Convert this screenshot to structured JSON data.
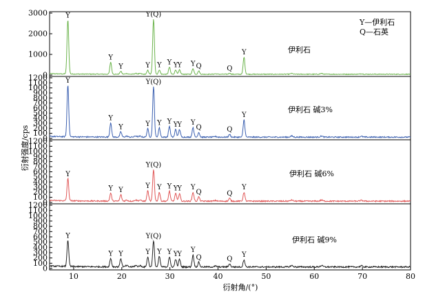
{
  "chart_data": {
    "type": "line",
    "xlabel": "衍射角/(°)",
    "ylabel": "衍射强度/cps",
    "xlim": [
      5,
      80
    ],
    "xticks": [
      10,
      20,
      30,
      40,
      50,
      60,
      70,
      80
    ],
    "legend": [
      "Y—伊利石",
      "Q—石英"
    ],
    "colors": {
      "illite": "#6ab34a",
      "alkali3": "#3a5fb0",
      "alkali6": "#e05555",
      "alkali9": "#222222"
    },
    "panels": [
      {
        "name": "伊利石",
        "color_key": "illite",
        "ylim": [
          0,
          3000
        ],
        "yticks": [
          0,
          1000,
          2000,
          3000
        ],
        "baseline": 40,
        "peaks": [
          {
            "x": 8.8,
            "y": 2650,
            "label": "Y"
          },
          {
            "x": 17.7,
            "y": 620,
            "label": "Y"
          },
          {
            "x": 19.8,
            "y": 180,
            "label": "Y"
          },
          {
            "x": 25.4,
            "y": 230,
            "label": "Y"
          },
          {
            "x": 26.6,
            "y": 2700,
            "label": "Y(Q)"
          },
          {
            "x": 27.8,
            "y": 250,
            "label": "Y"
          },
          {
            "x": 29.9,
            "y": 380,
            "label": "Y"
          },
          {
            "x": 31.2,
            "y": 250,
            "label": "Y"
          },
          {
            "x": 32.0,
            "y": 250,
            "label": "Y"
          },
          {
            "x": 34.8,
            "y": 320,
            "label": "Y"
          },
          {
            "x": 36.0,
            "y": 200,
            "label": "Q"
          },
          {
            "x": 42.4,
            "y": 90,
            "label": "Q"
          },
          {
            "x": 45.4,
            "y": 870,
            "label": "Y"
          }
        ]
      },
      {
        "name": "伊利石 碱3%",
        "color_key": "alkali3",
        "ylim": [
          0,
          1200
        ],
        "yticks": [
          0,
          100,
          200,
          300,
          400,
          500,
          600,
          700,
          800,
          900,
          1000,
          1100,
          1200
        ],
        "baseline": 25,
        "peaks": [
          {
            "x": 8.8,
            "y": 1050,
            "label": "Y"
          },
          {
            "x": 17.7,
            "y": 310,
            "label": "Y"
          },
          {
            "x": 19.8,
            "y": 130,
            "label": "Y"
          },
          {
            "x": 25.4,
            "y": 190,
            "label": "Y"
          },
          {
            "x": 26.6,
            "y": 1020,
            "label": "Y(Q)"
          },
          {
            "x": 27.8,
            "y": 210,
            "label": "Y"
          },
          {
            "x": 29.9,
            "y": 240,
            "label": "Y"
          },
          {
            "x": 31.2,
            "y": 180,
            "label": "Y"
          },
          {
            "x": 32.0,
            "y": 180,
            "label": "Y"
          },
          {
            "x": 34.8,
            "y": 220,
            "label": "Y"
          },
          {
            "x": 36.0,
            "y": 120,
            "label": "Q"
          },
          {
            "x": 42.4,
            "y": 80,
            "label": "Q"
          },
          {
            "x": 45.4,
            "y": 370,
            "label": "Y"
          }
        ]
      },
      {
        "name": "伊利石 碱6%",
        "color_key": "alkali6",
        "ylim": [
          0,
          1200
        ],
        "yticks": [
          0,
          100,
          200,
          300,
          400,
          500,
          600,
          700,
          800,
          900,
          1000,
          1100,
          1200
        ],
        "baseline": 25,
        "peaks": [
          {
            "x": 8.8,
            "y": 460,
            "label": "Y"
          },
          {
            "x": 17.7,
            "y": 180,
            "label": "Y"
          },
          {
            "x": 19.8,
            "y": 150,
            "label": "Y"
          },
          {
            "x": 25.4,
            "y": 230,
            "label": "Y"
          },
          {
            "x": 26.6,
            "y": 640,
            "label": "Y(Q)"
          },
          {
            "x": 27.8,
            "y": 200,
            "label": "Y"
          },
          {
            "x": 29.9,
            "y": 220,
            "label": "Y"
          },
          {
            "x": 31.2,
            "y": 180,
            "label": "Y"
          },
          {
            "x": 32.0,
            "y": 180,
            "label": "Y"
          },
          {
            "x": 34.8,
            "y": 200,
            "label": "Y"
          },
          {
            "x": 36.0,
            "y": 110,
            "label": "Q"
          },
          {
            "x": 42.4,
            "y": 80,
            "label": "Q"
          },
          {
            "x": 45.4,
            "y": 200,
            "label": "Y"
          }
        ]
      },
      {
        "name": "伊利石 碱9%",
        "color_key": "alkali9",
        "ylim": [
          0,
          1200
        ],
        "yticks": [
          0,
          100,
          200,
          300,
          400,
          500,
          600,
          700,
          800,
          900,
          1000,
          1100,
          1200
        ],
        "baseline": 30,
        "peaks": [
          {
            "x": 8.8,
            "y": 530,
            "label": "Y"
          },
          {
            "x": 17.7,
            "y": 190,
            "label": "Y"
          },
          {
            "x": 19.8,
            "y": 190,
            "label": "Y"
          },
          {
            "x": 25.4,
            "y": 220,
            "label": "Y"
          },
          {
            "x": 26.6,
            "y": 520,
            "label": "Y(Q)"
          },
          {
            "x": 27.8,
            "y": 230,
            "label": "Y"
          },
          {
            "x": 29.9,
            "y": 220,
            "label": "Y"
          },
          {
            "x": 31.2,
            "y": 180,
            "label": "Y"
          },
          {
            "x": 32.0,
            "y": 180,
            "label": "Y"
          },
          {
            "x": 34.8,
            "y": 260,
            "label": "Y"
          },
          {
            "x": 36.0,
            "y": 120,
            "label": "Q"
          },
          {
            "x": 42.4,
            "y": 90,
            "label": "Q"
          },
          {
            "x": 45.4,
            "y": 170,
            "label": "Y"
          }
        ]
      }
    ]
  }
}
